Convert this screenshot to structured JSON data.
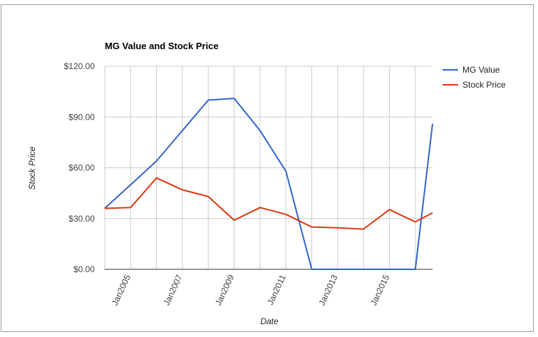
{
  "chart_data": {
    "type": "line",
    "title": "MG Value and Stock Price",
    "xlabel": "Date",
    "ylabel": "Stock Price",
    "x": [
      "2004-01",
      "2005-01",
      "2006-01",
      "2007-01",
      "2008-01",
      "2009-01",
      "2010-01",
      "2011-01",
      "2012-01",
      "2013-01",
      "2014-01",
      "2015-01",
      "2016-01",
      "2016-09"
    ],
    "series": [
      {
        "name": "MG Value",
        "color": "#3366cc",
        "values": [
          36,
          50,
          64,
          82,
          100,
          101,
          82,
          58,
          0,
          0,
          0,
          0,
          0,
          86
        ]
      },
      {
        "name": "Stock Price",
        "color": "#dc3912",
        "values": [
          36,
          36.5,
          54,
          47,
          43,
          29,
          36.5,
          32.5,
          25,
          24.5,
          23.8,
          35.3,
          28,
          33.4
        ]
      }
    ],
    "ylim": [
      0,
      120
    ],
    "yticks": [
      "$0.00",
      "$30.00",
      "$60.00",
      "$90.00",
      "$120.00"
    ],
    "xticks": [
      "Jan2005",
      "Jan2007",
      "Jan2009",
      "Jan2011",
      "Jan2013",
      "Jan2015"
    ],
    "grid": true,
    "legend_position": "right"
  }
}
